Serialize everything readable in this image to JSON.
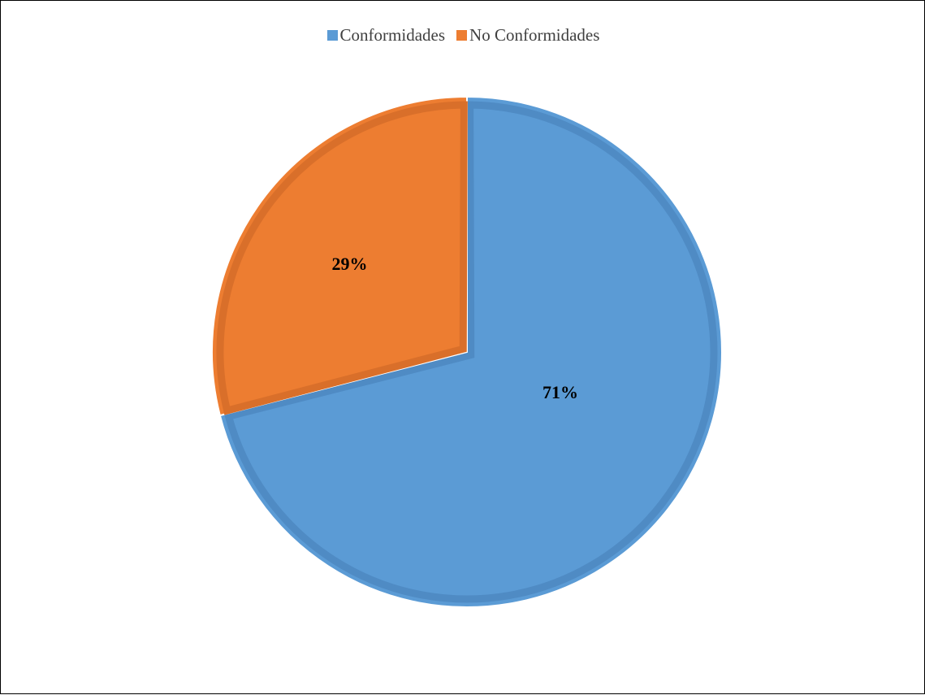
{
  "chart_data": {
    "type": "pie",
    "categories": [
      "Conformidades",
      "No Conformidades"
    ],
    "values": [
      71,
      29
    ],
    "data_labels": [
      "71%",
      "29%"
    ],
    "colors": [
      "#5B9BD5",
      "#ED7D31"
    ],
    "edge_colors": [
      "#4F8BC4",
      "#D96F2A"
    ],
    "start_angle": "12 o'clock",
    "direction": "clockwise",
    "legend_position": "top-center"
  }
}
